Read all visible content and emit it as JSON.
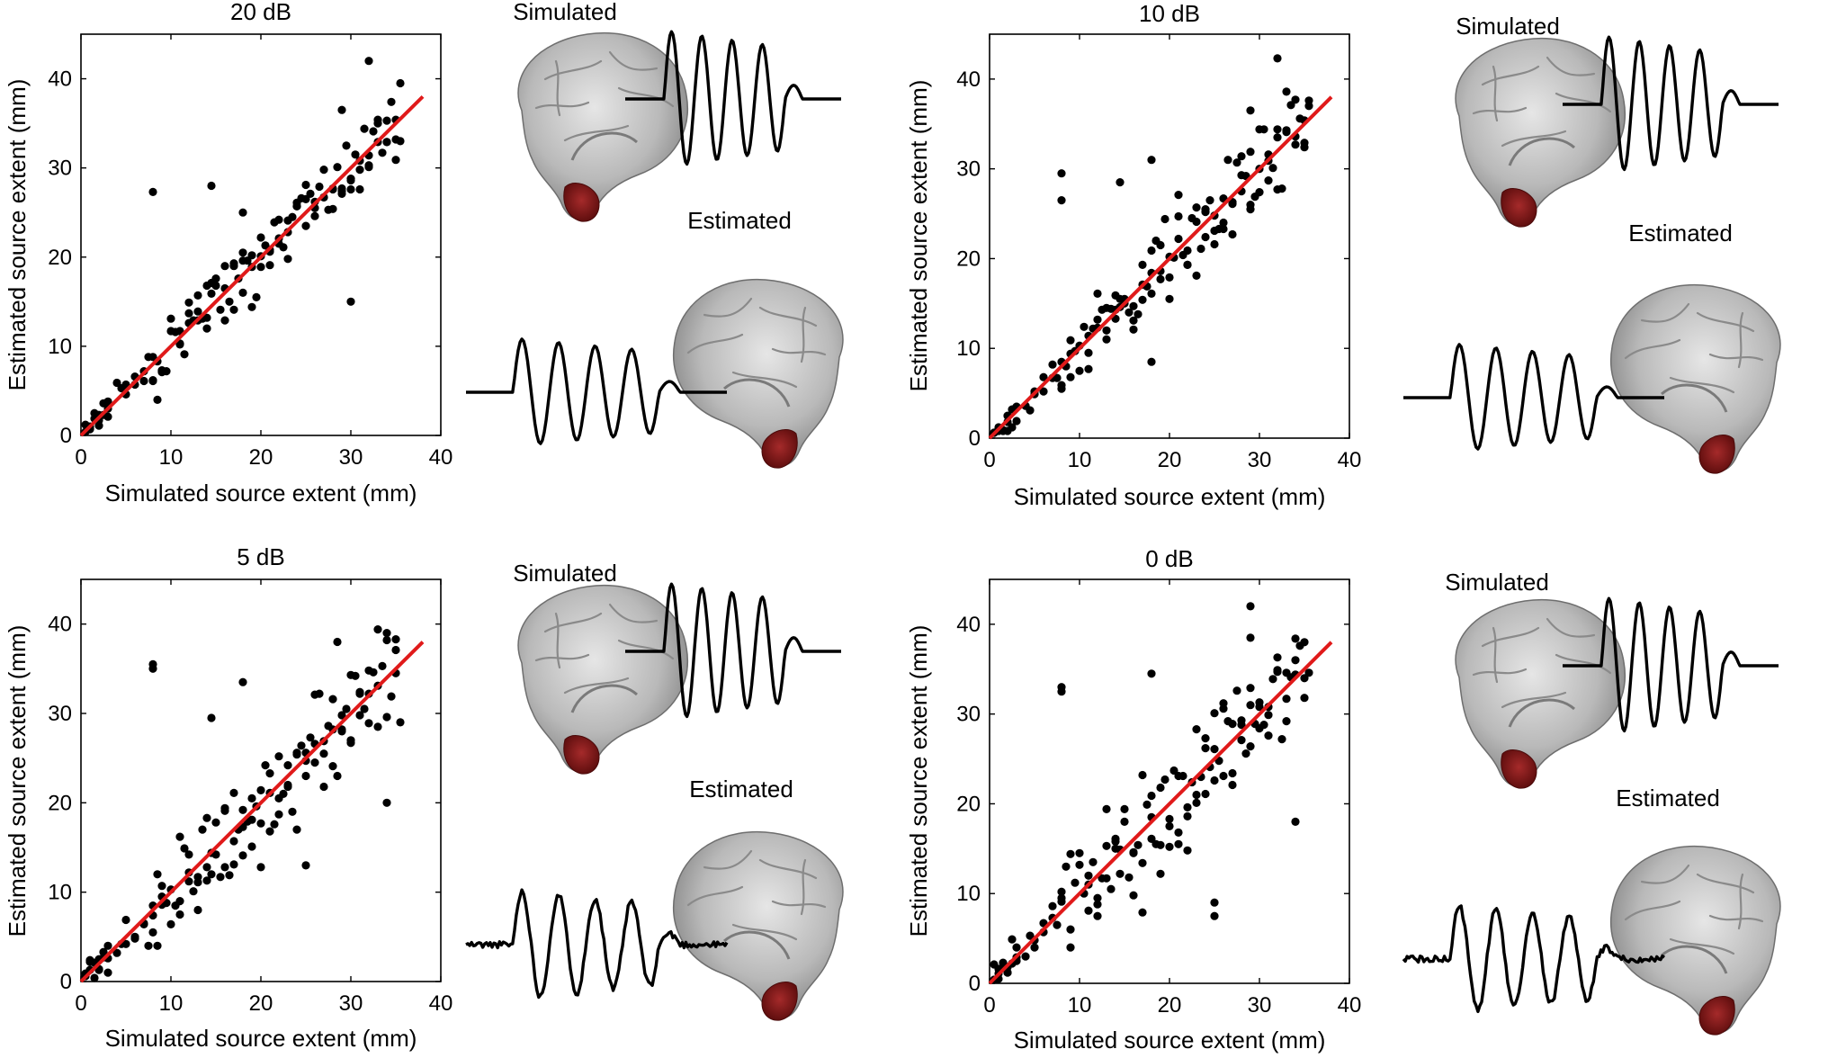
{
  "figure": {
    "panels": [
      {
        "id": "p20",
        "snr_label": "20 dB",
        "simulated_label": "Simulated",
        "estimated_label": "Estimated"
      },
      {
        "id": "p10",
        "snr_label": "10 dB",
        "simulated_label": "Simulated",
        "estimated_label": "Estimated"
      },
      {
        "id": "p5",
        "snr_label": "5 dB",
        "simulated_label": "Simulated",
        "estimated_label": "Estimated"
      },
      {
        "id": "p0",
        "snr_label": "0 dB",
        "simulated_label": "Simulated",
        "estimated_label": "Estimated"
      }
    ]
  },
  "colors": {
    "points": "#000000",
    "fit_line": "#e01a1a",
    "brain_surface": "#b9b9b9",
    "source_region": "#7a1414"
  },
  "chart_data": [
    {
      "type": "scatter",
      "title": "20 dB",
      "xlabel": "Simulated source extent (mm)",
      "ylabel": "Estimated source extent (mm)",
      "xlim": [
        0,
        40
      ],
      "ylim": [
        0,
        45
      ],
      "xticks": [
        0,
        10,
        20,
        30,
        40
      ],
      "yticks": [
        0,
        10,
        20,
        30,
        40
      ],
      "xtick_labels": [
        "0",
        "10",
        "20",
        "30",
        "40"
      ],
      "ytick_labels": [
        "0",
        "10",
        "20",
        "30",
        "40"
      ],
      "identity_line": {
        "x": [
          0,
          38
        ],
        "y": [
          0,
          38
        ]
      },
      "noise": 4.5,
      "outliers": [
        [
          8,
          27.3
        ],
        [
          14.5,
          28
        ],
        [
          18,
          25
        ],
        [
          32,
          42
        ],
        [
          29,
          36.5
        ],
        [
          35.5,
          39.5
        ],
        [
          8.5,
          4
        ],
        [
          30,
          15
        ]
      ],
      "x": [],
      "y": []
    },
    {
      "type": "scatter",
      "title": "10 dB",
      "xlabel": "Simulated source extent (mm)",
      "ylabel": "Estimated source extent (mm)",
      "xlim": [
        0,
        40
      ],
      "ylim": [
        0,
        45
      ],
      "xticks": [
        0,
        10,
        20,
        30,
        40
      ],
      "yticks": [
        0,
        10,
        20,
        30,
        40
      ],
      "xtick_labels": [
        "0",
        "10",
        "20",
        "30",
        "40"
      ],
      "ytick_labels": [
        "0",
        "10",
        "20",
        "30",
        "40"
      ],
      "identity_line": {
        "x": [
          0,
          38
        ],
        "y": [
          0,
          38
        ]
      },
      "noise": 5.5,
      "outliers": [
        [
          8,
          29.5
        ],
        [
          8,
          26.5
        ],
        [
          14.5,
          28.5
        ],
        [
          18,
          31
        ],
        [
          32,
          42.3
        ],
        [
          29,
          36.5
        ],
        [
          35.5,
          37
        ],
        [
          18,
          8.5
        ]
      ],
      "x": [],
      "y": []
    },
    {
      "type": "scatter",
      "title": "5 dB",
      "xlabel": "Simulated source extent (mm)",
      "ylabel": "Estimated source extent (mm)",
      "xlim": [
        0,
        40
      ],
      "ylim": [
        0,
        45
      ],
      "xticks": [
        0,
        10,
        20,
        30,
        40
      ],
      "yticks": [
        0,
        10,
        20,
        30,
        40
      ],
      "xtick_labels": [
        "0",
        "10",
        "20",
        "30",
        "40"
      ],
      "ytick_labels": [
        "0",
        "10",
        "20",
        "30",
        "40"
      ],
      "identity_line": {
        "x": [
          0,
          38
        ],
        "y": [
          0,
          38
        ]
      },
      "noise": 6.5,
      "outliers": [
        [
          8,
          35.5
        ],
        [
          8,
          35
        ],
        [
          28.5,
          38
        ],
        [
          18,
          33.5
        ],
        [
          14.5,
          29.5
        ],
        [
          8.5,
          4
        ],
        [
          34,
          20
        ],
        [
          25,
          13
        ]
      ],
      "x": [],
      "y": []
    },
    {
      "type": "scatter",
      "title": "0 dB",
      "xlabel": "Simulated source extent (mm)",
      "ylabel": "Estimated source extent (mm)",
      "xlim": [
        0,
        40
      ],
      "ylim": [
        0,
        45
      ],
      "xticks": [
        0,
        10,
        20,
        30,
        40
      ],
      "yticks": [
        0,
        10,
        20,
        30,
        40
      ],
      "xtick_labels": [
        "0",
        "10",
        "20",
        "30",
        "40"
      ],
      "ytick_labels": [
        "0",
        "10",
        "20",
        "30",
        "40"
      ],
      "identity_line": {
        "x": [
          0,
          38
        ],
        "y": [
          0,
          38
        ]
      },
      "noise": 7.5,
      "outliers": [
        [
          8,
          33
        ],
        [
          8,
          32.5
        ],
        [
          29,
          38.5
        ],
        [
          29,
          42
        ],
        [
          25,
          7.5
        ],
        [
          25,
          9
        ],
        [
          34,
          18
        ],
        [
          18,
          34.5
        ]
      ],
      "x": [],
      "y": []
    }
  ]
}
